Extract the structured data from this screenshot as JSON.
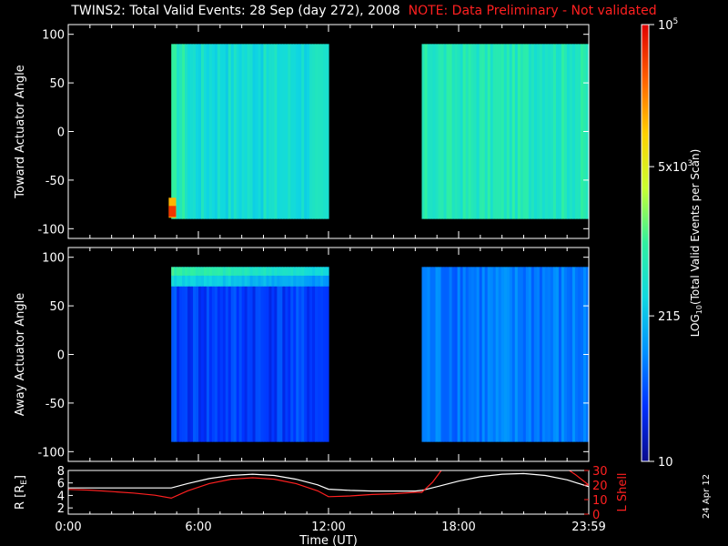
{
  "header": {
    "title": "TWINS2: Total Valid Events: 28 Sep (day 272), 2008",
    "note": "NOTE: Data Preliminary - Not validated"
  },
  "stamp": "24 Apr 12",
  "colors": {
    "background": "#000000",
    "axes": "#ffffff",
    "note": "#ff2020",
    "r_line": "#ffffff",
    "lshell_line": "#ff2020",
    "colormap": [
      "#0a0a8c",
      "#0030ff",
      "#0090ff",
      "#10d8e0",
      "#30f0a0",
      "#c8ff30",
      "#ffd000",
      "#ff6000",
      "#e00000"
    ]
  },
  "chart_data": [
    {
      "type": "heatmap",
      "panel": "top",
      "ylabel": "Toward Actuator Angle",
      "xlabel": "",
      "xlim": [
        0,
        24
      ],
      "ylim": [
        -110,
        110
      ],
      "yticks": [
        100,
        50,
        0,
        -50,
        -100
      ],
      "data_segments": [
        {
          "t_start": 4.75,
          "t_end": 12.0,
          "angle_range": [
            -90,
            90
          ],
          "dominant_level": "~150-215 (cyan)",
          "hot_spot": {
            "time": 4.8,
            "angle": -85,
            "level": "~1e5"
          }
        },
        {
          "t_start": 16.3,
          "t_end": 24.0,
          "angle_range": [
            -90,
            90
          ],
          "dominant_level": "~215-5e3 (cyan-green)"
        }
      ]
    },
    {
      "type": "heatmap",
      "panel": "middle",
      "ylabel": "Away Actuator Angle",
      "xlabel": "",
      "xlim": [
        0,
        24
      ],
      "ylim": [
        -110,
        110
      ],
      "yticks": [
        100,
        50,
        0,
        -50,
        -100
      ],
      "data_segments": [
        {
          "t_start": 4.75,
          "t_end": 12.0,
          "angle_range": [
            -90,
            90
          ],
          "dominant_level": "~30-100 (blue)",
          "high_band": {
            "angle_range": [
              70,
              90
            ],
            "level": "~215-5e3"
          }
        },
        {
          "t_start": 16.3,
          "t_end": 24.0,
          "angle_range": [
            -90,
            90
          ],
          "dominant_level": "~100-215 (blue-cyan)"
        }
      ]
    },
    {
      "type": "line",
      "panel": "bottom",
      "xlabel": "Time (UT)",
      "xlim": [
        0,
        24
      ],
      "x_tick_labels": [
        "0:00",
        "6:00",
        "12:00",
        "18:00",
        "23:59"
      ],
      "x_ticks": [
        0,
        6,
        12,
        18,
        24
      ],
      "left_axis": {
        "label": "R [R",
        "label_sub": "E",
        "label_end": "]",
        "ylim": [
          1,
          8
        ],
        "ticks": [
          2,
          4,
          6,
          8
        ]
      },
      "right_axis": {
        "label": "L Shell",
        "ylim": [
          0,
          30
        ],
        "ticks": [
          0,
          10,
          20,
          30
        ]
      },
      "series": [
        {
          "axis": "left",
          "color": "#ffffff",
          "x": [
            0,
            1,
            2,
            3,
            4,
            4.75,
            5.5,
            6.5,
            7.5,
            8.5,
            9.5,
            10.5,
            11.5,
            12,
            13,
            14,
            15,
            16,
            16.3,
            17,
            18,
            19,
            20,
            21,
            22,
            23,
            24
          ],
          "y": [
            5.2,
            5.2,
            5.2,
            5.2,
            5.2,
            5.2,
            5.9,
            6.7,
            7.2,
            7.4,
            7.2,
            6.6,
            5.7,
            5.0,
            4.8,
            4.7,
            4.7,
            4.7,
            4.8,
            5.4,
            6.3,
            7.0,
            7.4,
            7.5,
            7.2,
            6.5,
            5.4
          ]
        },
        {
          "axis": "right",
          "color": "#ff2020",
          "x": [
            0,
            1,
            2,
            3,
            4,
            4.75,
            5.5,
            6.5,
            7.5,
            8.5,
            9.5,
            10.5,
            11.5,
            12,
            13,
            14,
            15,
            16,
            16.3,
            16.8,
            17.3
          ],
          "y": [
            17,
            16.5,
            15.5,
            14.5,
            13,
            11,
            16,
            21,
            24,
            25,
            24,
            21,
            16,
            12,
            12.5,
            13.5,
            14,
            15,
            15,
            22,
            32
          ]
        },
        {
          "axis": "right",
          "color": "#ff2020",
          "x": [
            22.9,
            23.4,
            24
          ],
          "y": [
            32,
            27,
            20
          ]
        }
      ]
    }
  ],
  "colorbar": {
    "label": "LOG",
    "label_sub": "10",
    "label_rest": "(Total Valid Events per Scan)",
    "ticks": [
      {
        "base": "10",
        "exp": "5",
        "value": 100000
      },
      {
        "base": "5x10",
        "exp": "3",
        "value": 5000
      },
      {
        "base": "215",
        "exp": "",
        "value": 215
      },
      {
        "base": "10",
        "exp": "",
        "value": 10
      }
    ],
    "range": [
      10,
      100000
    ]
  }
}
